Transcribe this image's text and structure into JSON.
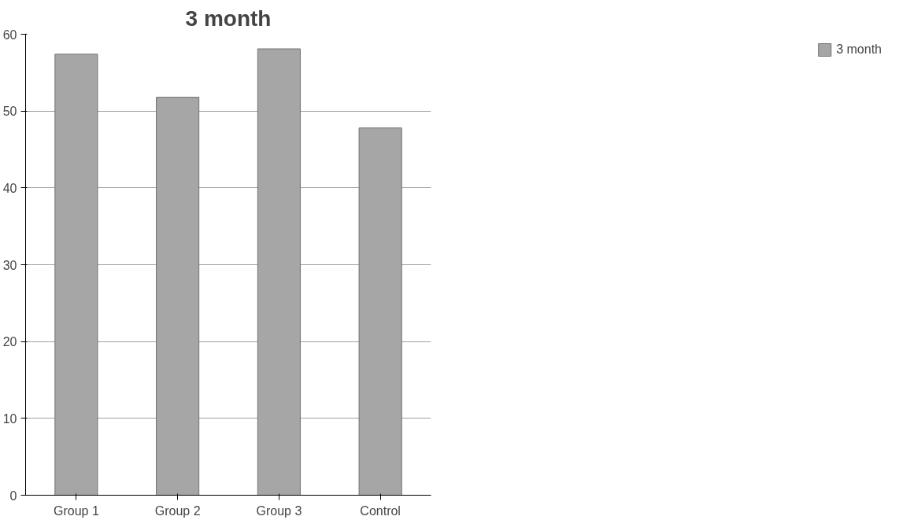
{
  "chart_data": {
    "type": "bar",
    "title": "3 month",
    "categories": [
      "Group 1",
      "Group 2",
      "Group 3",
      "Control"
    ],
    "series": [
      {
        "name": "3 month",
        "color": "#a6a6a6",
        "values": [
          57.4,
          51.8,
          58.1,
          47.8
        ]
      }
    ],
    "ylim": [
      0,
      60
    ],
    "yticks": [
      0,
      10,
      20,
      30,
      40,
      50,
      60
    ],
    "grid": "y",
    "legend": "right"
  }
}
